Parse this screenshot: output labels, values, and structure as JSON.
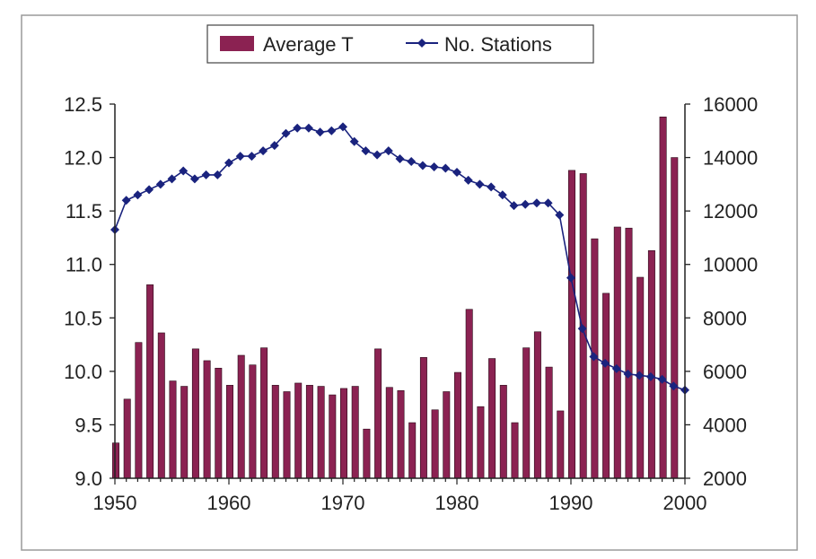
{
  "chart_data": {
    "type": "bar+line",
    "title": "",
    "xlabel": "",
    "ylabel": "",
    "y2label": "",
    "legend_position": "top-center",
    "grid": false,
    "xlim": [
      1950,
      2000
    ],
    "ylim": [
      9.0,
      12.5
    ],
    "y2lim": [
      2000,
      16000
    ],
    "x_ticks": [
      "1950",
      "1960",
      "1970",
      "1980",
      "1990",
      "2000"
    ],
    "y_ticks": [
      "12.5",
      "12.0",
      "11.5",
      "11.0",
      "10.5",
      "10.0",
      "9.5",
      "9.0"
    ],
    "y2_ticks": [
      "16000",
      "14000",
      "12000",
      "10000",
      "8000",
      "6000",
      "4000",
      "2000"
    ],
    "series": [
      {
        "name": "Average T",
        "type": "bar",
        "axis": "left",
        "color": "#8b2252",
        "x": [
          1950,
          1951,
          1952,
          1953,
          1954,
          1955,
          1956,
          1957,
          1958,
          1959,
          1960,
          1961,
          1962,
          1963,
          1964,
          1965,
          1966,
          1967,
          1968,
          1969,
          1970,
          1971,
          1972,
          1973,
          1974,
          1975,
          1976,
          1977,
          1978,
          1979,
          1980,
          1981,
          1982,
          1983,
          1984,
          1985,
          1986,
          1987,
          1988,
          1989,
          1990,
          1991,
          1992,
          1993,
          1994,
          1995,
          1996,
          1997,
          1998,
          1999
        ],
        "values": [
          9.33,
          9.74,
          10.27,
          10.81,
          10.36,
          9.91,
          9.86,
          10.21,
          10.1,
          10.03,
          9.87,
          10.15,
          10.06,
          10.22,
          9.87,
          9.81,
          9.89,
          9.87,
          9.86,
          9.78,
          9.84,
          9.86,
          9.46,
          10.21,
          9.85,
          9.82,
          9.52,
          10.13,
          9.64,
          9.81,
          9.99,
          10.58,
          9.67,
          10.12,
          9.87,
          9.52,
          10.22,
          10.37,
          10.04,
          9.63,
          11.88,
          11.85,
          11.24,
          10.73,
          11.35,
          11.34,
          10.88,
          11.13,
          12.38,
          12.0
        ]
      },
      {
        "name": "No. Stations",
        "type": "line",
        "axis": "right",
        "color": "#1a237e",
        "x": [
          1950,
          1951,
          1952,
          1953,
          1954,
          1955,
          1956,
          1957,
          1958,
          1959,
          1960,
          1961,
          1962,
          1963,
          1964,
          1965,
          1966,
          1967,
          1968,
          1969,
          1970,
          1971,
          1972,
          1973,
          1974,
          1975,
          1976,
          1977,
          1978,
          1979,
          1980,
          1981,
          1982,
          1983,
          1984,
          1985,
          1986,
          1987,
          1988,
          1989,
          1990,
          1991,
          1992,
          1993,
          1994,
          1995,
          1996,
          1997,
          1998,
          1999,
          2000
        ],
        "values": [
          11300,
          12400,
          12600,
          12800,
          13000,
          13200,
          13500,
          13200,
          13350,
          13350,
          13800,
          14050,
          14050,
          14250,
          14450,
          14900,
          15100,
          15100,
          14950,
          15000,
          15150,
          14600,
          14250,
          14100,
          14250,
          13950,
          13850,
          13700,
          13650,
          13600,
          13450,
          13150,
          13000,
          12900,
          12600,
          12200,
          12250,
          12300,
          12300,
          11850,
          9500,
          7600,
          6550,
          6300,
          6100,
          5900,
          5850,
          5800,
          5700,
          5450,
          5300
        ]
      }
    ]
  }
}
